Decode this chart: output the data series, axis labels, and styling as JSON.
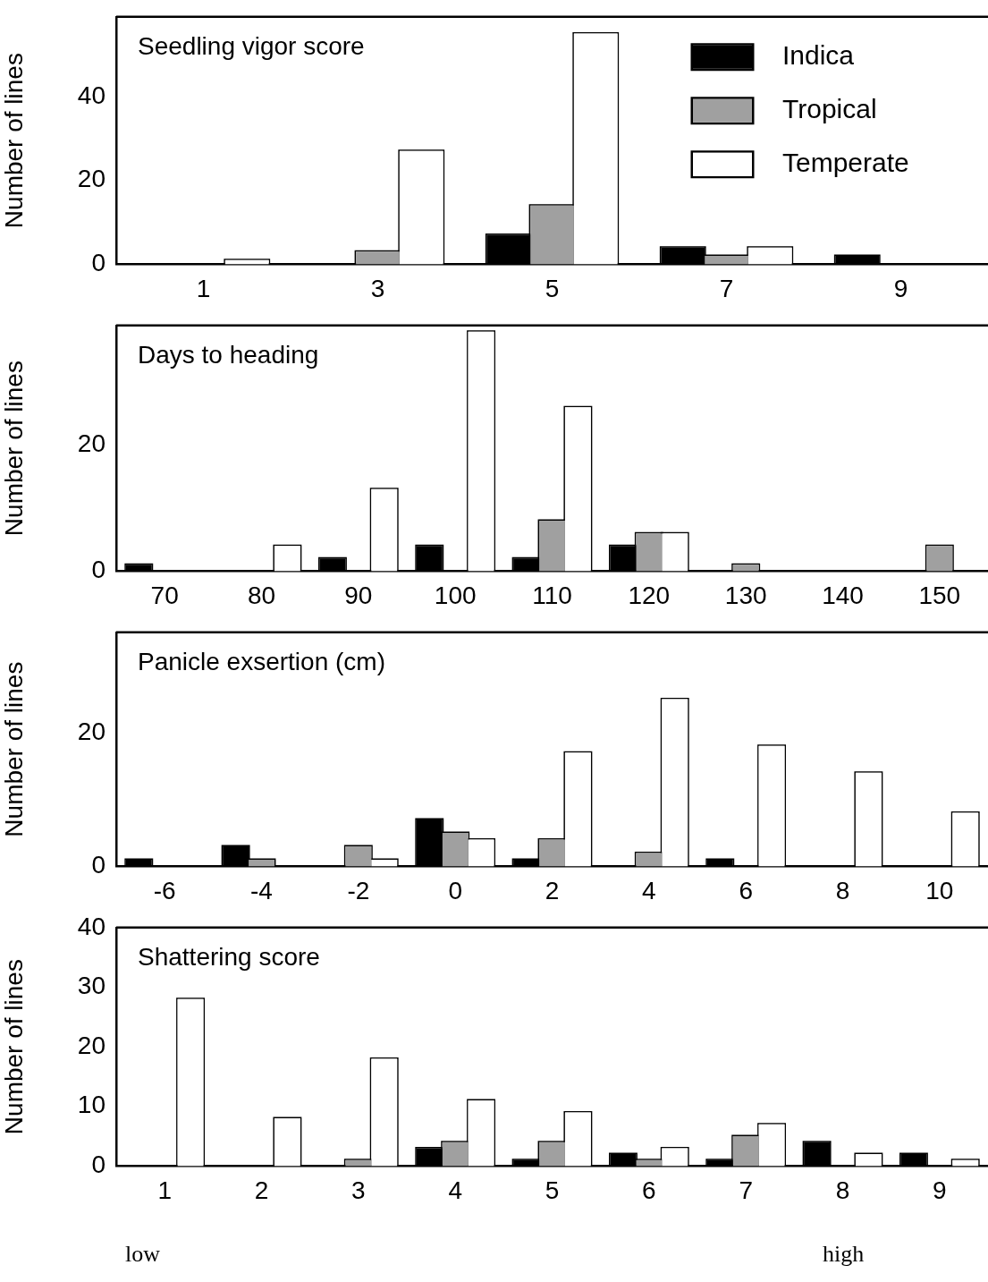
{
  "chart_data": [
    {
      "type": "bar",
      "title": "Seedling vigor score",
      "ylabel": "Number of lines",
      "categories": [
        "1",
        "3",
        "5",
        "7",
        "9"
      ],
      "ylim": [
        0,
        59
      ],
      "yticks": [
        0,
        20,
        40
      ],
      "legend": "top right",
      "series": [
        {
          "name": "Indica",
          "color": "#000000",
          "values": [
            0,
            0,
            7,
            4,
            2
          ]
        },
        {
          "name": "Tropical",
          "color": "#a0a0a0",
          "values": [
            0,
            3,
            14,
            2,
            0
          ]
        },
        {
          "name": "Temperate",
          "color": "#ffffff",
          "values": [
            1,
            27,
            55,
            4,
            0
          ]
        }
      ]
    },
    {
      "type": "bar",
      "title": "Days to heading",
      "ylabel": "Number of lines",
      "categories": [
        "70",
        "80",
        "90",
        "100",
        "110",
        "120",
        "130",
        "140",
        "150"
      ],
      "ylim": [
        0,
        39
      ],
      "yticks": [
        0,
        20
      ],
      "series": [
        {
          "color": "#000000",
          "values": [
            1,
            0,
            2,
            4,
            2,
            4,
            0,
            0,
            0
          ]
        },
        {
          "color": "#a0a0a0",
          "values": [
            0,
            0,
            0,
            0,
            8,
            6,
            1,
            0,
            4
          ]
        },
        {
          "color": "#ffffff",
          "values": [
            0,
            4,
            13,
            38,
            26,
            6,
            0,
            0,
            0
          ]
        }
      ]
    },
    {
      "type": "bar",
      "title": "Panicle exsertion (cm)",
      "ylabel": "Number of lines",
      "categories": [
        "-6",
        "-4",
        "-2",
        "0",
        "2",
        "4",
        "6",
        "8",
        "10"
      ],
      "ylim": [
        0,
        35
      ],
      "yticks": [
        0,
        20
      ],
      "series": [
        {
          "color": "#000000",
          "values": [
            1,
            3,
            0,
            7,
            1,
            0,
            1,
            0,
            0
          ]
        },
        {
          "color": "#a0a0a0",
          "values": [
            0,
            1,
            3,
            5,
            4,
            2,
            0,
            0,
            0
          ]
        },
        {
          "color": "#ffffff",
          "values": [
            0,
            0,
            1,
            4,
            17,
            25,
            18,
            14,
            8
          ]
        }
      ]
    },
    {
      "type": "bar",
      "title": "Shattering score",
      "ylabel": "Number of lines",
      "categories": [
        "1",
        "2",
        "3",
        "4",
        "5",
        "6",
        "7",
        "8",
        "9"
      ],
      "ylim": [
        0,
        40
      ],
      "yticks": [
        0,
        10,
        20,
        30,
        40
      ],
      "annotations": [
        "low",
        "high"
      ],
      "series": [
        {
          "color": "#000000",
          "values": [
            0,
            0,
            0,
            3,
            1,
            2,
            1,
            4,
            2
          ]
        },
        {
          "color": "#a0a0a0",
          "values": [
            0,
            0,
            1,
            4,
            4,
            1,
            5,
            0,
            0
          ]
        },
        {
          "color": "#ffffff",
          "values": [
            28,
            8,
            18,
            11,
            9,
            3,
            7,
            2,
            1
          ]
        }
      ]
    }
  ]
}
